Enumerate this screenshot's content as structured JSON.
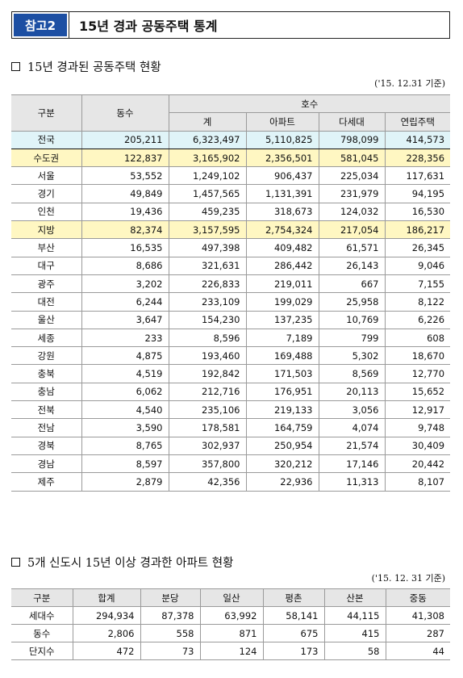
{
  "header": {
    "tag": "참고2",
    "title": "15년 경과 공동주택 통계"
  },
  "section1": {
    "title": "15년 경과된 공동주택 현황",
    "note": "('15. 12.31 기준)",
    "headers": {
      "category": "구분",
      "buildings": "동수",
      "units": "호수",
      "total": "계",
      "apt": "아파트",
      "multi": "다세대",
      "row": "연립주택"
    },
    "rows": [
      [
        "전국",
        "205,211",
        "6,323,497",
        "5,110,825",
        "798,099",
        "414,573"
      ],
      [
        "수도권",
        "122,837",
        "3,165,902",
        "2,356,501",
        "581,045",
        "228,356"
      ],
      [
        "서울",
        "53,552",
        "1,249,102",
        "906,437",
        "225,034",
        "117,631"
      ],
      [
        "경기",
        "49,849",
        "1,457,565",
        "1,131,391",
        "231,979",
        "94,195"
      ],
      [
        "인천",
        "19,436",
        "459,235",
        "318,673",
        "124,032",
        "16,530"
      ],
      [
        "지방",
        "82,374",
        "3,157,595",
        "2,754,324",
        "217,054",
        "186,217"
      ],
      [
        "부산",
        "16,535",
        "497,398",
        "409,482",
        "61,571",
        "26,345"
      ],
      [
        "대구",
        "8,686",
        "321,631",
        "286,442",
        "26,143",
        "9,046"
      ],
      [
        "광주",
        "3,202",
        "226,833",
        "219,011",
        "667",
        "7,155"
      ],
      [
        "대전",
        "6,244",
        "233,109",
        "199,029",
        "25,958",
        "8,122"
      ],
      [
        "울산",
        "3,647",
        "154,230",
        "137,235",
        "10,769",
        "6,226"
      ],
      [
        "세종",
        "233",
        "8,596",
        "7,189",
        "799",
        "608"
      ],
      [
        "강원",
        "4,875",
        "193,460",
        "169,488",
        "5,302",
        "18,670"
      ],
      [
        "충북",
        "4,519",
        "192,842",
        "171,503",
        "8,569",
        "12,770"
      ],
      [
        "충남",
        "6,062",
        "212,716",
        "176,951",
        "20,113",
        "15,652"
      ],
      [
        "전북",
        "4,540",
        "235,106",
        "219,133",
        "3,056",
        "12,917"
      ],
      [
        "전남",
        "3,590",
        "178,581",
        "164,759",
        "4,074",
        "9,748"
      ],
      [
        "경북",
        "8,765",
        "302,937",
        "250,954",
        "21,574",
        "30,409"
      ],
      [
        "경남",
        "8,597",
        "357,800",
        "320,212",
        "17,146",
        "20,442"
      ],
      [
        "제주",
        "2,879",
        "42,356",
        "22,936",
        "11,313",
        "8,107"
      ]
    ]
  },
  "section2": {
    "title": "5개 신도시 15년 이상 경과한 아파트 현황",
    "note": "('15. 12. 31 기준)",
    "headers": [
      "구분",
      "합계",
      "분당",
      "일산",
      "평촌",
      "산본",
      "중동"
    ],
    "rows": [
      [
        "세대수",
        "294,934",
        "87,378",
        "63,992",
        "58,141",
        "44,115",
        "41,308"
      ],
      [
        "동수",
        "2,806",
        "558",
        "871",
        "675",
        "415",
        "287"
      ],
      [
        "단지수",
        "472",
        "73",
        "124",
        "173",
        "58",
        "44"
      ]
    ]
  },
  "colors": {
    "tag_bg": "#1d4fa3",
    "national_row": "#e0f4f8",
    "region_row": "#fff7c2",
    "header_bg": "#e6e6e6"
  }
}
